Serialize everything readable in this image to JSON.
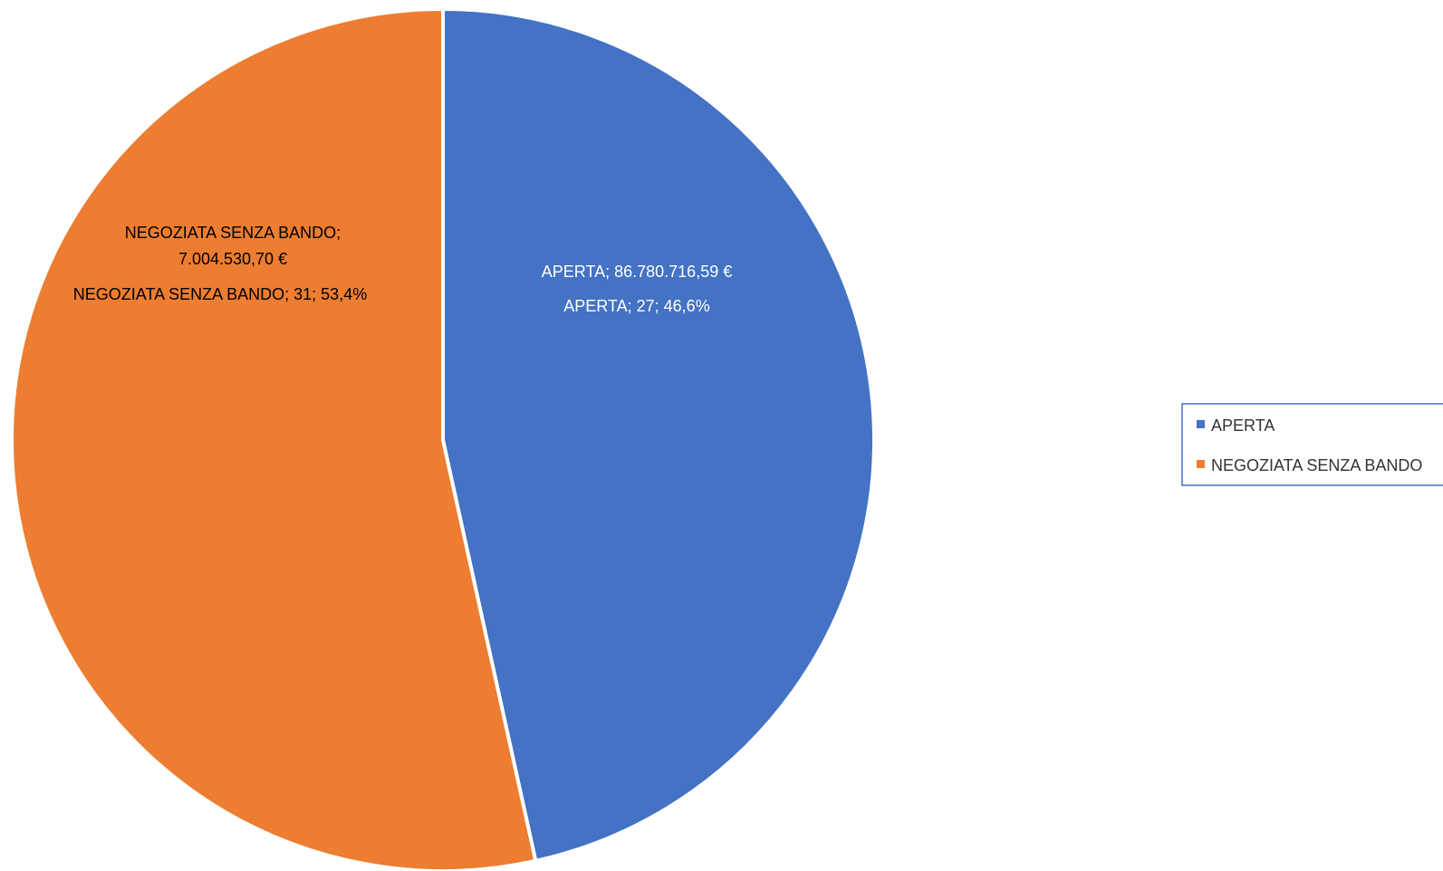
{
  "colors": {
    "aperta": "#4472c4",
    "negoziata": "#ed7d31",
    "label_dark": "#000000",
    "label_light": "#ffffff"
  },
  "chart_data": {
    "type": "pie",
    "categories": [
      "APERTA",
      "NEGOZIATA SENZA BANDO"
    ],
    "values": [
      27,
      31
    ],
    "percentages": [
      46.6,
      53.4
    ],
    "amounts": [
      "86.780.716,59 €",
      "7.004.530,70 €"
    ],
    "legend": [
      "APERTA",
      "NEGOZIATA SENZA BANDO"
    ],
    "legend_position": "right",
    "labels": {
      "aperta_amount": "APERTA; 86.780.716,59 €",
      "aperta_count": "APERTA; 27; 46,6%",
      "negoziata_amount_line1": "NEGOZIATA SENZA BANDO;",
      "negoziata_amount_line2": "7.004.530,70 €",
      "negoziata_count": "NEGOZIATA SENZA BANDO; 31; 53,4%"
    }
  }
}
